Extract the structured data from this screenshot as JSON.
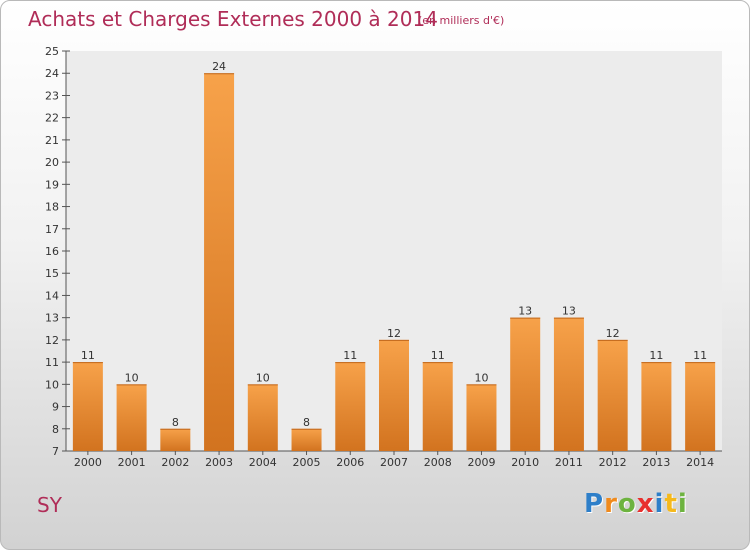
{
  "header": {
    "title": "Achats et Charges Externes 2000 à 2014",
    "unit": "(en milliers d'€)"
  },
  "footer": {
    "place": "SY",
    "logo_letters": [
      {
        "ch": "P",
        "color": "#2e7fc9"
      },
      {
        "ch": "r",
        "color": "#f08a1c"
      },
      {
        "ch": "o",
        "color": "#6db33f"
      },
      {
        "ch": "x",
        "color": "#e8302e"
      },
      {
        "ch": "i",
        "color": "#2e7fc9"
      },
      {
        "ch": "t",
        "color": "#f5b91c"
      },
      {
        "ch": "i",
        "color": "#6db33f"
      }
    ]
  },
  "chart_data": {
    "type": "bar",
    "title": "Achats et Charges Externes 2000 à 2014",
    "subtitle": "(en milliers d'€)",
    "xlabel": "",
    "ylabel": "",
    "categories": [
      "2000",
      "2001",
      "2002",
      "2003",
      "2004",
      "2005",
      "2006",
      "2007",
      "2008",
      "2009",
      "2010",
      "2011",
      "2012",
      "2013",
      "2014"
    ],
    "values": [
      11,
      10,
      8,
      24,
      10,
      8,
      11,
      12,
      11,
      10,
      13,
      13,
      12,
      11,
      11
    ],
    "ylim": [
      7,
      25
    ],
    "yticks": [
      7,
      8,
      9,
      10,
      11,
      12,
      13,
      14,
      15,
      16,
      17,
      18,
      19,
      20,
      21,
      22,
      23,
      24,
      25
    ],
    "grid": false,
    "legend": "none",
    "bar_color_top": "#f7a24a",
    "bar_color_bottom": "#d2731f"
  }
}
